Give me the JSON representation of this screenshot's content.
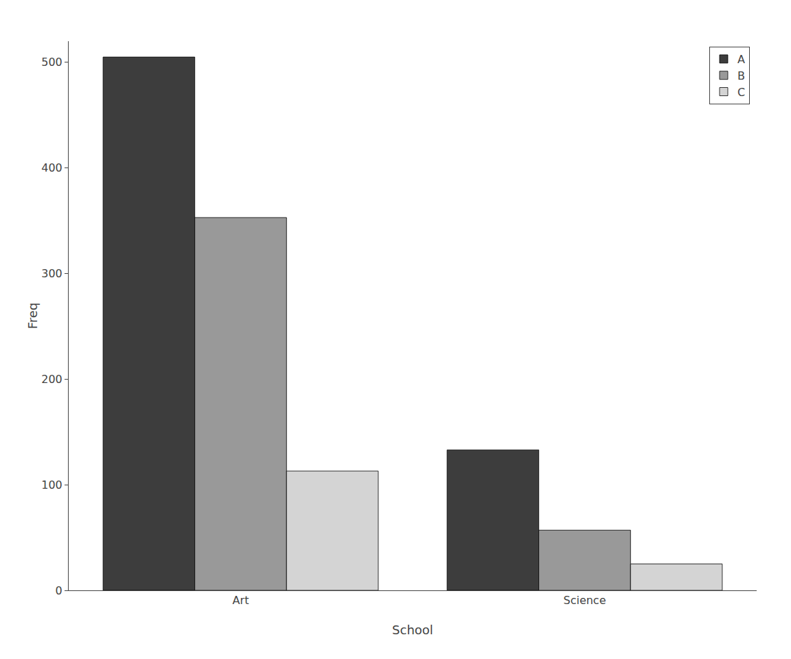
{
  "chart_data": {
    "type": "bar",
    "xlabel": "School",
    "ylabel": "Freq",
    "categories": [
      "Art",
      "Science"
    ],
    "series": [
      {
        "name": "A",
        "color": "#3d3d3d",
        "values": [
          505,
          133
        ]
      },
      {
        "name": "B",
        "color": "#999999",
        "values": [
          353,
          57
        ]
      },
      {
        "name": "C",
        "color": "#d4d4d4",
        "values": [
          113,
          25
        ]
      }
    ],
    "ylim": [
      0,
      520
    ],
    "yticks": [
      0,
      100,
      200,
      300,
      400,
      500
    ],
    "grid": false,
    "legend": "upper right"
  }
}
